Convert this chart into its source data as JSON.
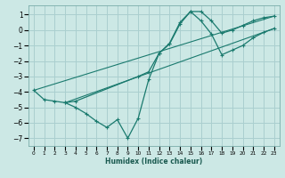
{
  "xlabel": "Humidex (Indice chaleur)",
  "bg_color": "#cce8e5",
  "grid_color": "#aacfcf",
  "line_color": "#1a7a6e",
  "xlim": [
    -0.5,
    23.5
  ],
  "ylim": [
    -7.5,
    1.6
  ],
  "yticks": [
    1,
    0,
    -1,
    -2,
    -3,
    -4,
    -5,
    -6,
    -7
  ],
  "xticks": [
    0,
    1,
    2,
    3,
    4,
    5,
    6,
    7,
    8,
    9,
    10,
    11,
    12,
    13,
    14,
    15,
    16,
    17,
    18,
    19,
    20,
    21,
    22,
    23
  ],
  "curve1_x": [
    0,
    1,
    2,
    3,
    4,
    10,
    11,
    12,
    13,
    14,
    15,
    16,
    17,
    18,
    19,
    20,
    21,
    22,
    23
  ],
  "curve1_y": [
    -3.9,
    -4.5,
    -4.6,
    -4.7,
    -4.6,
    -3.0,
    -2.7,
    -1.5,
    -0.9,
    0.4,
    1.2,
    1.2,
    0.6,
    -0.2,
    0.0,
    0.3,
    0.6,
    0.8,
    0.9
  ],
  "curve2_x": [
    3,
    4,
    5,
    6,
    7,
    8,
    9,
    10,
    11,
    12,
    13,
    14,
    15,
    16,
    17,
    18,
    19,
    20,
    21,
    22,
    23
  ],
  "curve2_y": [
    -4.7,
    -5.0,
    -5.4,
    -5.9,
    -6.3,
    -5.8,
    -7.0,
    -5.7,
    -3.2,
    -1.5,
    -0.85,
    0.5,
    1.2,
    0.6,
    -0.25,
    -1.6,
    -1.3,
    -1.0,
    -0.5,
    -0.15,
    0.1
  ],
  "line1_x": [
    0,
    23
  ],
  "line1_y": [
    -3.9,
    0.9
  ],
  "line2_x": [
    3,
    23
  ],
  "line2_y": [
    -4.7,
    0.1
  ]
}
